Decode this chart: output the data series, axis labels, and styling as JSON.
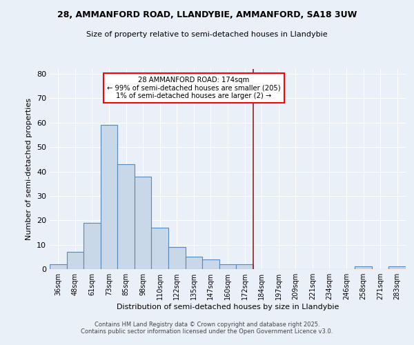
{
  "title_line1": "28, AMMANFORD ROAD, LLANDYBIE, AMMANFORD, SA18 3UW",
  "title_line2": "Size of property relative to semi-detached houses in Llandybie",
  "xlabel": "Distribution of semi-detached houses by size in Llandybie",
  "ylabel": "Number of semi-detached properties",
  "bin_labels": [
    "36sqm",
    "48sqm",
    "61sqm",
    "73sqm",
    "85sqm",
    "98sqm",
    "110sqm",
    "122sqm",
    "135sqm",
    "147sqm",
    "160sqm",
    "172sqm",
    "184sqm",
    "197sqm",
    "209sqm",
    "221sqm",
    "234sqm",
    "246sqm",
    "258sqm",
    "271sqm",
    "283sqm"
  ],
  "bar_values": [
    2,
    7,
    19,
    59,
    43,
    38,
    17,
    9,
    5,
    4,
    2,
    2,
    0,
    0,
    0,
    0,
    0,
    0,
    1,
    0,
    1
  ],
  "bar_color": "#c8d8e8",
  "bar_edge_color": "#5588bb",
  "vline_color": "#8b2020",
  "annotation_text": "28 AMMANFORD ROAD: 174sqm\n← 99% of semi-detached houses are smaller (205)\n1% of semi-detached houses are larger (2) →",
  "annotation_box_color": "white",
  "annotation_box_edge": "red",
  "ylim": [
    0,
    82
  ],
  "yticks": [
    0,
    10,
    20,
    30,
    40,
    50,
    60,
    70,
    80
  ],
  "footer_line1": "Contains HM Land Registry data © Crown copyright and database right 2025.",
  "footer_line2": "Contains public sector information licensed under the Open Government Licence v3.0.",
  "bg_color": "#eaf0f8",
  "plot_bg_color": "#eaf0f8"
}
